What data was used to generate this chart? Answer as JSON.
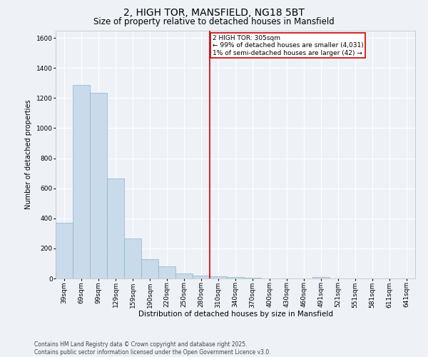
{
  "title": "2, HIGH TOR, MANSFIELD, NG18 5BT",
  "subtitle": "Size of property relative to detached houses in Mansfield",
  "xlabel": "Distribution of detached houses by size in Mansfield",
  "ylabel": "Number of detached properties",
  "categories": [
    "39sqm",
    "69sqm",
    "99sqm",
    "129sqm",
    "159sqm",
    "190sqm",
    "220sqm",
    "250sqm",
    "280sqm",
    "310sqm",
    "340sqm",
    "370sqm",
    "400sqm",
    "430sqm",
    "460sqm",
    "491sqm",
    "521sqm",
    "551sqm",
    "581sqm",
    "611sqm",
    "641sqm"
  ],
  "values": [
    370,
    1285,
    1235,
    665,
    265,
    130,
    80,
    35,
    20,
    12,
    8,
    5,
    2,
    0,
    0,
    8,
    0,
    0,
    0,
    0,
    0
  ],
  "bar_color": "#c9daea",
  "bar_edge_color": "#8ab4cc",
  "vline_color": "#cc0000",
  "vline_x_index": 9,
  "annotation_text": "2 HIGH TOR: 305sqm\n← 99% of detached houses are smaller (4,031)\n1% of semi-detached houses are larger (42) →",
  "annotation_box_color": "#ffffff",
  "annotation_box_edge": "#cc0000",
  "ylim": [
    0,
    1650
  ],
  "yticks": [
    0,
    200,
    400,
    600,
    800,
    1000,
    1200,
    1400,
    1600
  ],
  "background_color": "#eef2f7",
  "grid_color": "#ffffff",
  "footer": "Contains HM Land Registry data © Crown copyright and database right 2025.\nContains public sector information licensed under the Open Government Licence v3.0.",
  "title_fontsize": 10,
  "subtitle_fontsize": 8.5,
  "xlabel_fontsize": 7.5,
  "ylabel_fontsize": 7,
  "tick_fontsize": 6.5,
  "annotation_fontsize": 6.5,
  "footer_fontsize": 5.5
}
